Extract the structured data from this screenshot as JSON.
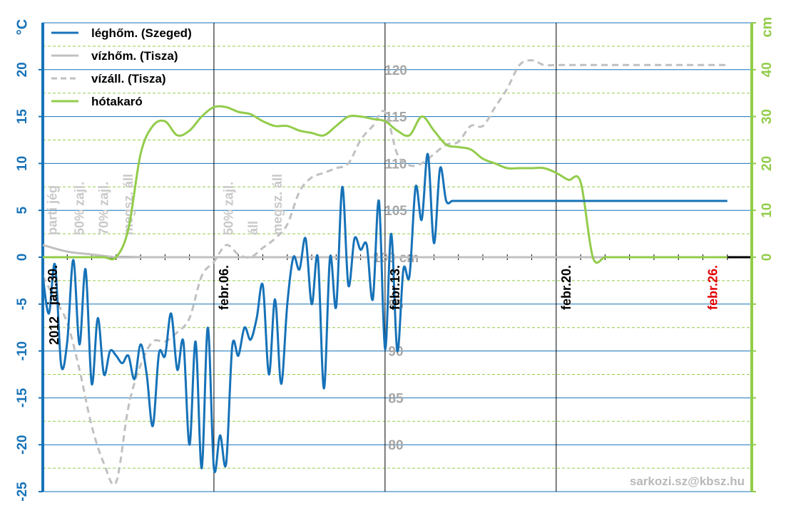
{
  "chart_data": {
    "type": "line",
    "title": "",
    "x_axis": {
      "unit": "day",
      "range": [
        "2012-01-30",
        "2012-02-28"
      ],
      "date_labels": [
        {
          "date": "2012-01-30",
          "text": "jan.30.",
          "color": "#000000"
        },
        {
          "date": "2012-02-06",
          "text": "febr.06.",
          "color": "#000000"
        },
        {
          "date": "2012-02-13",
          "text": "febr.13.",
          "color": "#000000"
        },
        {
          "date": "2012-02-20",
          "text": "febr.20.",
          "color": "#000000"
        },
        {
          "date": "2012-02-26",
          "text": "febr.26.",
          "color": "#e00000"
        }
      ],
      "year_label": "2012"
    },
    "axes": {
      "left": {
        "unit_label": "°C",
        "min": -25,
        "max": 25,
        "ticks": [
          -25,
          -20,
          -15,
          -10,
          -5,
          0,
          5,
          10,
          15,
          20
        ],
        "color": "#1672b8"
      },
      "right": {
        "unit_label": "cm",
        "min": -50,
        "max": 50,
        "ticks": [
          0,
          10,
          20,
          30,
          40
        ],
        "color": "#92cc4a"
      },
      "middle": {
        "min": 75,
        "max": 125,
        "ticks": [
          {
            "value": 80,
            "label": "80"
          },
          {
            "value": 85,
            "label": "85"
          },
          {
            "value": 90,
            "label": "90"
          },
          {
            "value": 95,
            "label": "95"
          },
          {
            "value": 100,
            "label": "100 cm"
          },
          {
            "value": 105,
            "label": "105"
          },
          {
            "value": 110,
            "label": "110"
          },
          {
            "value": 115,
            "label": "115"
          },
          {
            "value": 120,
            "label": "120"
          }
        ],
        "color": "#a6a6a6"
      }
    },
    "grid": true,
    "legend": {
      "position": "top-left",
      "entries": [
        {
          "text": "léghőm. (Szeged)",
          "color": "#1672b8",
          "style": "solid"
        },
        {
          "text": "vízhőm. (Tisza)",
          "color": "#c0c0c0",
          "style": "solid"
        },
        {
          "text": "vízáll. (Tisza)",
          "color": "#c0c0c0",
          "style": "dashed"
        },
        {
          "text": "hótakaró",
          "color": "#92cc4a",
          "style": "solid"
        }
      ]
    },
    "annotations": [
      {
        "date": "2012-01-30.4",
        "text": "parti jég"
      },
      {
        "date": "2012-01-31.5",
        "text": "50% zajl."
      },
      {
        "date": "2012-02-01.5",
        "text": "70% zajl."
      },
      {
        "date": "2012-02-02.5",
        "text": "megsz. áll"
      },
      {
        "date": "2012-02-06.6",
        "text": "50% zajl."
      },
      {
        "date": "2012-02-07.6",
        "text": "áll"
      },
      {
        "date": "2012-02-08.6",
        "text": "megsz. áll"
      }
    ],
    "credit": "sarkozi.sz@kbsz.hu",
    "series": [
      {
        "name": "léghőm. (Szeged)",
        "axis": "left",
        "color": "#1672b8",
        "x_days_from": "2012-01-30",
        "x": [
          0,
          0.25,
          0.5,
          0.75,
          1,
          1.25,
          1.5,
          1.75,
          2,
          2.25,
          2.5,
          2.75,
          3,
          3.25,
          3.5,
          3.75,
          4,
          4.25,
          4.5,
          4.75,
          5,
          5.25,
          5.5,
          5.75,
          6,
          6.25,
          6.5,
          6.75,
          7,
          7.25,
          7.5,
          7.75,
          8,
          8.25,
          8.5,
          8.75,
          9,
          9.25,
          9.5,
          9.75,
          10,
          10.25,
          10.5,
          10.75,
          11,
          11.25,
          11.5,
          11.75,
          12,
          12.25,
          12.5,
          12.75,
          13,
          13.25,
          13.5,
          13.75,
          14,
          14.25,
          14.5,
          14.75,
          15,
          15.25,
          15.5,
          15.75,
          16,
          16.25,
          16.5,
          16.75,
          17,
          17.25,
          17.5,
          17.75,
          18,
          18.25,
          18.5,
          18.75,
          19,
          19.25,
          19.5,
          19.75,
          20,
          20.25,
          20.5,
          20.75,
          21,
          21.25,
          21.5,
          21.75,
          22,
          22.25,
          22.5,
          22.75,
          23,
          23.25,
          23.5,
          23.75,
          24,
          24.25,
          24.5,
          24.75,
          25,
          25.25,
          25.5,
          25.75,
          26,
          26.25,
          26.5,
          26.75,
          27,
          27.25,
          27.5,
          27.75,
          28
        ],
        "values": [
          -2,
          -6,
          -0.8,
          -11.5,
          -9,
          -0.3,
          -9.3,
          -1.3,
          -13.5,
          -6.5,
          -12.5,
          -10,
          -10.5,
          -11.3,
          -10.5,
          -13,
          -9.3,
          -12.5,
          -18,
          -10.3,
          -10.5,
          -6,
          -12,
          -9,
          -20,
          -9,
          -22.5,
          -7.5,
          -22.5,
          -19,
          -22,
          -9.5,
          -10.5,
          -7.5,
          -8.8,
          -6.5,
          -3,
          -12.5,
          -4.5,
          -13.5,
          -5,
          0,
          -1.3,
          2,
          -5,
          0,
          -14,
          0,
          -5.3,
          7.5,
          -3,
          2,
          0.8,
          1.3,
          -4.5,
          6,
          -9.8,
          2.5,
          -10,
          -1.3,
          -2,
          7.5,
          4,
          11,
          1.5,
          9.5,
          6,
          6,
          6,
          6,
          6,
          6,
          6,
          6,
          6,
          6,
          6,
          6,
          6,
          6,
          6,
          6,
          6,
          6,
          6,
          6,
          6,
          6,
          6,
          6,
          6,
          6,
          6,
          6,
          6,
          6,
          6,
          6,
          6,
          6,
          6,
          6,
          6,
          6,
          6,
          6,
          6,
          6,
          6,
          6,
          6,
          6,
          6
        ]
      },
      {
        "name": "vízhőm. (Tisza)",
        "axis": "left",
        "color": "#c0c0c0",
        "x_days_from": "2012-01-30",
        "x": [
          0,
          1,
          2,
          3,
          4,
          5,
          6,
          7,
          8,
          9,
          10,
          11,
          12,
          13,
          14,
          15,
          16,
          17,
          18,
          19,
          20,
          21,
          22,
          23,
          24,
          25,
          26,
          27,
          28
        ],
        "values": [
          1.3,
          0.6,
          0.3,
          0,
          0,
          0,
          0,
          0,
          0,
          0,
          0,
          0,
          0,
          0,
          0,
          0,
          0,
          0,
          0,
          0,
          0,
          0,
          0,
          0,
          0,
          0,
          0,
          0,
          0
        ]
      },
      {
        "name": "vízáll. (Tisza)",
        "axis": "middle",
        "color": "#c0c0c0",
        "x_days_from": "2012-01-30",
        "x": [
          0,
          0.5,
          1,
          1.5,
          2,
          2.5,
          3,
          3.5,
          4,
          4.5,
          5,
          5.5,
          6,
          6.5,
          7,
          7.5,
          8,
          8.5,
          9,
          9.5,
          10,
          10.5,
          11,
          11.5,
          12,
          12.5,
          13,
          13.5,
          14,
          14.5,
          15,
          15.5,
          16,
          16.5,
          17,
          17.5,
          18,
          18.5,
          19,
          19.5,
          20,
          20.5,
          21,
          21.5,
          22,
          22.5,
          23,
          23.5,
          24,
          24.5,
          25,
          25.5,
          26,
          26.5,
          27,
          27.5,
          28
        ],
        "values": [
          98,
          95.5,
          93,
          88,
          82,
          78,
          76,
          84,
          88.5,
          91,
          91,
          92,
          93.5,
          98,
          99.5,
          101.3,
          100.3,
          100,
          101,
          102,
          103.5,
          107,
          108.5,
          109,
          109.5,
          110,
          112.5,
          114,
          115.5,
          111,
          109.8,
          110,
          111,
          112,
          112.3,
          114,
          114,
          116,
          118,
          120.5,
          121,
          120.5,
          120.5,
          120.5,
          120.5,
          120.5,
          120.5,
          120.5,
          120.5,
          120.5,
          120.5,
          120.5,
          120.5,
          120.5,
          120.5,
          120.5,
          120.5
        ]
      },
      {
        "name": "hótakaró",
        "axis": "right",
        "color": "#92cc4a",
        "x_days_from": "2012-01-30",
        "x": [
          0,
          0.5,
          1,
          1.5,
          2,
          2.5,
          3,
          3.5,
          4,
          4.5,
          5,
          5.5,
          6,
          6.5,
          7,
          7.5,
          8,
          8.5,
          9,
          9.5,
          10,
          10.5,
          11,
          11.5,
          12,
          12.5,
          13,
          13.5,
          14,
          14.5,
          15,
          15.5,
          16,
          16.5,
          17,
          17.5,
          18,
          18.5,
          19,
          19.5,
          20,
          20.5,
          21,
          21.5,
          22,
          22.5,
          23,
          23.5,
          24,
          24.5,
          25,
          25.5,
          26,
          26.5,
          27,
          27.5,
          28
        ],
        "values": [
          0,
          0,
          0,
          0,
          0,
          0,
          0,
          6,
          22,
          28,
          29,
          26,
          27,
          30,
          32,
          32,
          31,
          30.5,
          29,
          28,
          28,
          27,
          26.5,
          26,
          28,
          30,
          30,
          29.5,
          29,
          27,
          26,
          30,
          27,
          24,
          23.5,
          23,
          21,
          20,
          19,
          19,
          19,
          19,
          18,
          16.5,
          16,
          0,
          0,
          0,
          0,
          0,
          0,
          0,
          0,
          0,
          0,
          0,
          0
        ]
      }
    ]
  }
}
